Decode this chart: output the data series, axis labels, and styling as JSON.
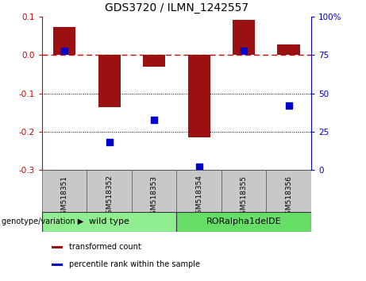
{
  "title": "GDS3720 / ILMN_1242557",
  "samples": [
    "GSM518351",
    "GSM518352",
    "GSM518353",
    "GSM518354",
    "GSM518355",
    "GSM518356"
  ],
  "transformed_count": [
    0.073,
    -0.135,
    -0.03,
    -0.215,
    0.092,
    0.028
  ],
  "percentile_rank": [
    78,
    18,
    33,
    2,
    78,
    42
  ],
  "left_ylim": [
    -0.3,
    0.1
  ],
  "right_ylim": [
    0,
    100
  ],
  "left_yticks": [
    -0.3,
    -0.2,
    -0.1,
    0.0,
    0.1
  ],
  "right_yticks": [
    0,
    25,
    50,
    75,
    100
  ],
  "right_yticklabels": [
    "0",
    "25",
    "50",
    "75",
    "100%"
  ],
  "bar_color": "#9B1010",
  "dot_color": "#0000CC",
  "zero_line_color": "#CC0000",
  "dotted_line_color": "#000000",
  "groups": [
    {
      "label": "wild type",
      "samples": [
        0,
        1,
        2
      ],
      "color": "#90EE90"
    },
    {
      "label": "RORalpha1delDE",
      "samples": [
        3,
        4,
        5
      ],
      "color": "#66DD66"
    }
  ],
  "group_header": "genotype/variation",
  "legend_items": [
    {
      "label": "transformed count",
      "color": "#9B1010"
    },
    {
      "label": "percentile rank within the sample",
      "color": "#0000CC"
    }
  ],
  "bar_width": 0.5,
  "dot_size": 40,
  "title_fontsize": 10,
  "tick_fontsize": 7.5,
  "sample_fontsize": 6.5,
  "group_fontsize": 8,
  "legend_fontsize": 7
}
